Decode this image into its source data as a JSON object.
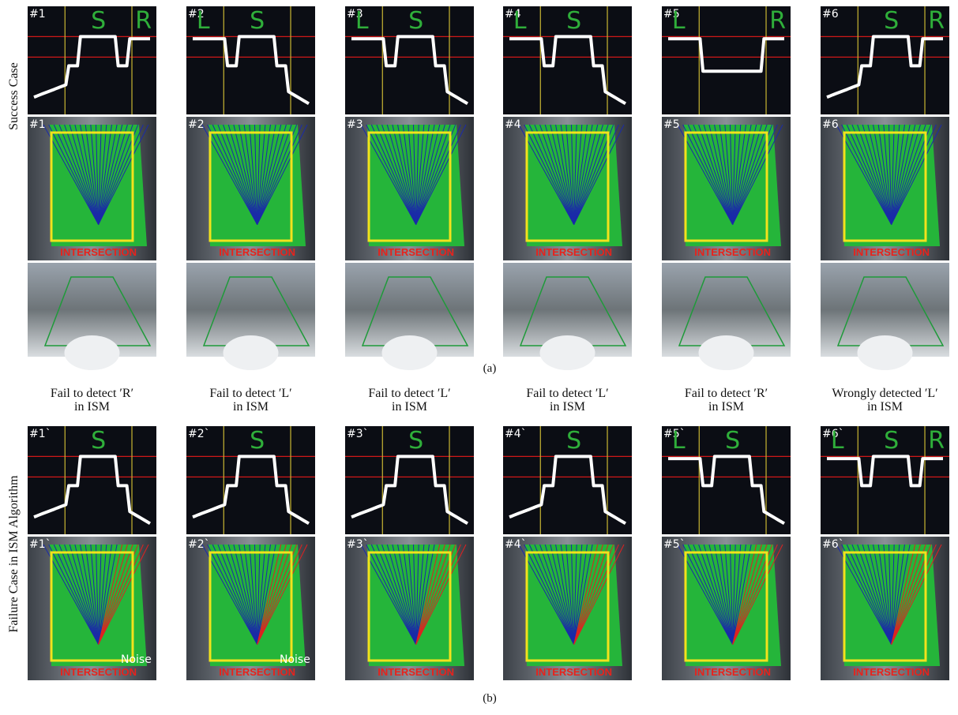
{
  "section_a": {
    "label": "(a)",
    "row_label": "Success Case",
    "panels": [
      {
        "plot_id": "#1",
        "letters": [
          "S",
          "R"
        ],
        "bev_id": "#1",
        "bev_tag": "INTERSECTION"
      },
      {
        "plot_id": "#2",
        "letters": [
          "L",
          "S"
        ],
        "bev_id": "#2",
        "bev_tag": "INTERSECTION"
      },
      {
        "plot_id": "#3",
        "letters": [
          "L",
          "S"
        ],
        "bev_id": "#3",
        "bev_tag": "INTERSECTION"
      },
      {
        "plot_id": "#4",
        "letters": [
          "L",
          "S"
        ],
        "bev_id": "#4",
        "bev_tag": "INTERSECTION"
      },
      {
        "plot_id": "#5",
        "letters": [
          "L",
          "R"
        ],
        "bev_id": "#5",
        "bev_tag": "INTERSECTION"
      },
      {
        "plot_id": "#6",
        "letters": [
          "S",
          "R"
        ],
        "bev_id": "#6",
        "bev_tag": "INTERSECTION"
      }
    ]
  },
  "section_b": {
    "label": "(b)",
    "row_label": "Failure Case in ISM Algorithm",
    "panels": [
      {
        "caption": [
          "Fail to detect ′R′",
          "in ISM"
        ],
        "plot_id": "#1`",
        "letters": [
          "S"
        ],
        "bev_id": "#1`",
        "bev_tag": "INTERSECTION",
        "note": "Noise"
      },
      {
        "caption": [
          "Fail to detect ′L′",
          "in ISM"
        ],
        "plot_id": "#2`",
        "letters": [
          "S"
        ],
        "bev_id": "#2`",
        "bev_tag": "INTERSECTION",
        "note": "Noise"
      },
      {
        "caption": [
          "Fail to detect ′L′",
          "in ISM"
        ],
        "plot_id": "#3`",
        "letters": [
          "S"
        ],
        "bev_id": "#3`",
        "bev_tag": "INTERSECTION"
      },
      {
        "caption": [
          "Fail to detect ′L′",
          "in ISM"
        ],
        "plot_id": "#4`",
        "letters": [
          "S"
        ],
        "bev_id": "#4`",
        "bev_tag": "INTERSECTION"
      },
      {
        "caption": [
          "Fail to detect ′R′",
          "in ISM"
        ],
        "plot_id": "#5`",
        "letters": [
          "L",
          "S"
        ],
        "bev_id": "#5`",
        "bev_tag": "INTERSECTION"
      },
      {
        "caption": [
          "Wrongly detected ′L′",
          "in ISM"
        ],
        "plot_id": "#6`",
        "letters": [
          "L",
          "S",
          "R"
        ],
        "bev_id": "#6`",
        "bev_tag": "INTERSECTION"
      }
    ]
  }
}
